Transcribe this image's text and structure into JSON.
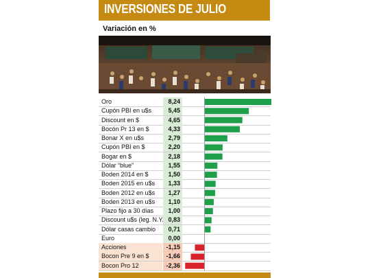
{
  "header": {
    "title": "INVERSIONES DE JULIO"
  },
  "subtitle": "Variación en %",
  "colors": {
    "accent": "#c48a12",
    "positive": "#1ea04a",
    "negative": "#d8232a",
    "value_bg": "#d8ecd6",
    "neg_bg": "#f8cbb8"
  },
  "photo": {
    "description_icon": "stock-exchange-photo"
  },
  "chart_data": {
    "type": "bar",
    "orientation": "horizontal",
    "categories": [
      "Oro",
      "Cupón PBI en u$s",
      "Discount en $",
      "Bocón Pr 13 en $",
      "Bonar X en u$s",
      "Cupón PBI en $",
      "Bogar en $",
      "Dólar “blue”",
      "Boden 2014 en $",
      "Boden 2015 en u$s",
      "Boden 2012 en u$s",
      "Boden 2013 en u$s",
      "Plazo fijo a 30 días",
      "Discount u$s (leg. N.Y.)",
      "Dólar casas cambio",
      "Euro",
      "Acciones",
      "Bocon Pre 9 en $",
      "Bocon Pro 12"
    ],
    "labels": [
      "8,24",
      "5,45",
      "4,65",
      "4,33",
      "2,79",
      "2,20",
      "2,18",
      "1,55",
      "1,50",
      "1,33",
      "1,27",
      "1,10",
      "1,00",
      "0,83",
      "0,71",
      "0,00",
      "-1,15",
      "-1,66",
      "-2,36"
    ],
    "values": [
      8.24,
      5.45,
      4.65,
      4.33,
      2.79,
      2.2,
      2.18,
      1.55,
      1.5,
      1.33,
      1.27,
      1.1,
      1.0,
      0.83,
      0.71,
      0.0,
      -1.15,
      -1.66,
      -2.36
    ],
    "title": "INVERSIONES DE JULIO",
    "ylabel": "Variación en %"
  }
}
